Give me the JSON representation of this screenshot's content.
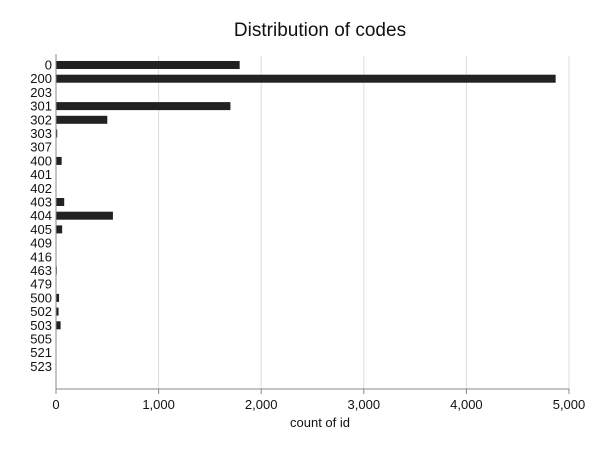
{
  "chart_data": {
    "type": "bar",
    "orientation": "horizontal",
    "title": "Distribution of codes",
    "xlabel": "count of id",
    "ylabel": "",
    "categories": [
      "0",
      "200",
      "203",
      "301",
      "302",
      "303",
      "307",
      "400",
      "401",
      "402",
      "403",
      "404",
      "405",
      "409",
      "416",
      "463",
      "479",
      "500",
      "502",
      "503",
      "505",
      "521",
      "523"
    ],
    "values": [
      1790,
      4870,
      3,
      1700,
      500,
      12,
      2,
      55,
      3,
      2,
      80,
      555,
      60,
      2,
      2,
      8,
      2,
      30,
      25,
      45,
      4,
      2,
      2
    ],
    "xlim": [
      0,
      5000
    ],
    "xticks": [
      0,
      1000,
      2000,
      3000,
      4000,
      5000
    ],
    "xtick_labels": [
      "0",
      "1,000",
      "2,000",
      "3,000",
      "4,000",
      "5,000"
    ],
    "grid": "vertical",
    "bar_color": "#222222",
    "grid_color": "#dddddd",
    "axis_color": "#888888"
  }
}
